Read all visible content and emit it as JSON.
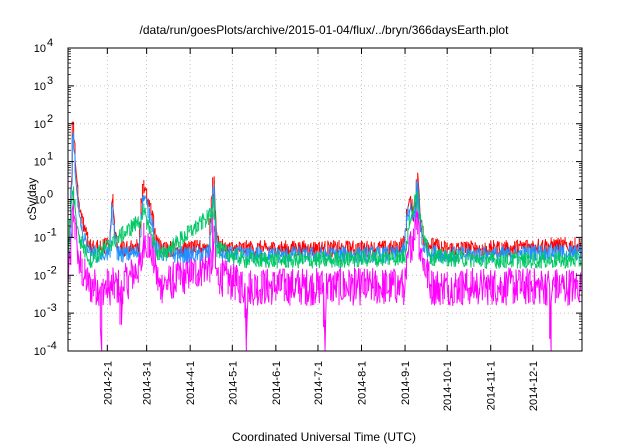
{
  "chart_data": {
    "type": "line",
    "title": "/data/run/goesPlots/archive/2015-01-04/flux/../bryn/366daysEarth.plot",
    "xlabel": "Coordinated Universal Time (UTC)",
    "ylabel": "cSv/day",
    "yscale": "log",
    "ylim": [
      0.0001,
      10000
    ],
    "xlim": [
      "2014-01-04",
      "2015-01-05"
    ],
    "grid": true,
    "y_ticks": [
      {
        "value": 0.0001,
        "base": "10",
        "exp": "-4"
      },
      {
        "value": 0.001,
        "base": "10",
        "exp": "-3"
      },
      {
        "value": 0.01,
        "base": "10",
        "exp": "-2"
      },
      {
        "value": 0.1,
        "base": "10",
        "exp": "-1"
      },
      {
        "value": 1,
        "base": "10",
        "exp": "0"
      },
      {
        "value": 10,
        "base": "10",
        "exp": "1"
      },
      {
        "value": 100,
        "base": "10",
        "exp": "2"
      },
      {
        "value": 1000,
        "base": "10",
        "exp": "3"
      },
      {
        "value": 10000,
        "base": "10",
        "exp": "4"
      }
    ],
    "x_ticks": [
      "2014-2-1",
      "2014-3-1",
      "2014-4-1",
      "2014-5-1",
      "2014-6-1",
      "2014-7-1",
      "2014-8-1",
      "2014-9-1",
      "2014-10-1",
      "2014-11-1",
      "2014-12-1"
    ],
    "colors": [
      "#ff0000",
      "#0000ff",
      "#00c864",
      "#1e90ff",
      "#ff00ff"
    ],
    "series": [
      {
        "color": "#ff0000",
        "x": [
          "2014-01-04",
          "2014-01-06",
          "2014-01-07",
          "2014-01-08",
          "2014-01-09",
          "2014-01-11",
          "2014-01-14",
          "2014-01-20",
          "2014-01-27",
          "2014-02-03",
          "2014-02-05",
          "2014-02-08",
          "2014-02-15",
          "2014-02-24",
          "2014-02-26",
          "2014-02-27",
          "2014-03-02",
          "2014-03-05",
          "2014-03-08",
          "2014-03-15",
          "2014-03-25",
          "2014-04-05",
          "2014-04-15",
          "2014-04-17",
          "2014-04-18",
          "2014-04-19",
          "2014-04-20",
          "2014-04-25",
          "2014-05-10",
          "2014-05-25",
          "2014-06-10",
          "2014-06-25",
          "2014-07-10",
          "2014-07-25",
          "2014-08-10",
          "2014-08-25",
          "2014-09-01",
          "2014-09-03",
          "2014-09-05",
          "2014-09-07",
          "2014-09-08",
          "2014-09-09",
          "2014-09-10",
          "2014-09-11",
          "2014-09-12",
          "2014-09-14",
          "2014-09-20",
          "2014-10-01",
          "2014-10-15",
          "2014-11-01",
          "2014-11-15",
          "2014-12-01",
          "2014-12-15",
          "2015-01-04"
        ],
        "y": [
          0.06,
          0.2,
          5,
          110,
          30,
          2,
          0.3,
          0.06,
          0.05,
          0.07,
          1.1,
          0.06,
          0.05,
          0.06,
          0.8,
          2.5,
          1,
          0.5,
          0.08,
          0.05,
          0.05,
          0.05,
          0.06,
          1,
          4,
          0.5,
          0.1,
          0.05,
          0.05,
          0.05,
          0.05,
          0.05,
          0.05,
          0.05,
          0.05,
          0.05,
          0.07,
          0.6,
          0.9,
          0.5,
          0.4,
          1,
          5,
          1.5,
          0.3,
          0.1,
          0.06,
          0.05,
          0.05,
          0.05,
          0.05,
          0.06,
          0.06,
          0.06
        ]
      },
      {
        "color": "#1e90ff",
        "x": [
          "2014-01-04",
          "2014-01-06",
          "2014-01-07",
          "2014-01-08",
          "2014-01-09",
          "2014-01-11",
          "2014-01-14",
          "2014-01-20",
          "2014-01-27",
          "2014-02-03",
          "2014-02-05",
          "2014-02-08",
          "2014-02-15",
          "2014-02-24",
          "2014-02-26",
          "2014-02-27",
          "2014-03-02",
          "2014-03-05",
          "2014-03-08",
          "2014-03-15",
          "2014-03-25",
          "2014-04-05",
          "2014-04-15",
          "2014-04-17",
          "2014-04-18",
          "2014-04-19",
          "2014-04-20",
          "2014-04-25",
          "2014-05-10",
          "2014-05-25",
          "2014-06-10",
          "2014-06-25",
          "2014-07-10",
          "2014-07-25",
          "2014-08-10",
          "2014-08-25",
          "2014-09-01",
          "2014-09-03",
          "2014-09-05",
          "2014-09-07",
          "2014-09-08",
          "2014-09-09",
          "2014-09-10",
          "2014-09-11",
          "2014-09-12",
          "2014-09-14",
          "2014-09-20",
          "2014-10-01",
          "2014-10-15",
          "2014-11-01",
          "2014-11-15",
          "2014-12-01",
          "2014-12-15",
          "2015-01-04"
        ],
        "y": [
          0.035,
          0.1,
          3,
          60,
          15,
          1,
          0.15,
          0.04,
          0.035,
          0.04,
          0.6,
          0.04,
          0.035,
          0.04,
          0.5,
          1.3,
          0.6,
          0.3,
          0.05,
          0.035,
          0.035,
          0.035,
          0.04,
          0.6,
          2.5,
          0.3,
          0.06,
          0.035,
          0.035,
          0.035,
          0.035,
          0.035,
          0.035,
          0.035,
          0.035,
          0.035,
          0.045,
          0.4,
          0.6,
          0.35,
          0.3,
          0.6,
          3,
          0.9,
          0.2,
          0.06,
          0.04,
          0.035,
          0.035,
          0.035,
          0.035,
          0.04,
          0.04,
          0.04
        ]
      },
      {
        "color": "#00c864",
        "x": [
          "2014-01-04",
          "2014-01-07",
          "2014-01-08",
          "2014-01-09",
          "2014-01-12",
          "2014-01-20",
          "2014-02-26",
          "2014-02-27",
          "2014-03-03",
          "2014-03-10",
          "2014-04-17",
          "2014-04-18",
          "2014-04-20",
          "2014-05-10",
          "2014-07-10",
          "2014-09-01",
          "2014-09-05",
          "2014-09-10",
          "2014-09-12",
          "2014-09-20",
          "2014-11-01",
          "2015-01-04"
        ],
        "y": [
          0.025,
          1,
          2,
          1,
          0.1,
          0.025,
          0.3,
          0.5,
          0.2,
          0.03,
          0.4,
          1,
          0.05,
          0.025,
          0.025,
          0.03,
          0.3,
          1.5,
          0.3,
          0.03,
          0.025,
          0.025
        ]
      },
      {
        "color": "#ff00ff",
        "x": [
          "2014-01-04",
          "2014-01-07",
          "2014-01-08",
          "2014-01-09",
          "2014-01-12",
          "2014-01-20",
          "2014-01-27",
          "2014-01-28",
          "2014-01-29",
          "2014-02-10",
          "2014-02-11",
          "2014-02-12",
          "2014-02-26",
          "2014-02-27",
          "2014-03-05",
          "2014-03-10",
          "2014-04-17",
          "2014-04-18",
          "2014-04-20",
          "2014-05-10",
          "2014-05-11",
          "2014-05-12",
          "2014-07-05",
          "2014-07-06",
          "2014-07-07",
          "2014-09-01",
          "2014-09-05",
          "2014-09-10",
          "2014-09-12",
          "2014-09-20",
          "2014-10-08",
          "2014-10-09",
          "2014-10-10",
          "2014-12-13",
          "2014-12-14",
          "2014-12-15",
          "2015-01-04"
        ],
        "y": [
          0.005,
          0.1,
          1,
          0.3,
          0.02,
          0.005,
          0.005,
          0.0001,
          0.005,
          0.005,
          0.0005,
          0.005,
          0.02,
          0.1,
          0.05,
          0.005,
          0.02,
          0.2,
          0.01,
          0.005,
          0.0002,
          0.005,
          0.005,
          0.0001,
          0.005,
          0.005,
          0.05,
          0.5,
          0.05,
          0.005,
          0.005,
          0.005,
          0.005,
          0.005,
          0.0001,
          0.005,
          0.005
        ]
      }
    ]
  }
}
